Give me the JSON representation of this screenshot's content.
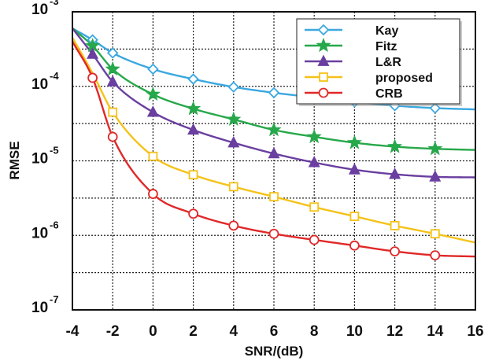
{
  "chart_data": {
    "type": "line",
    "title": "",
    "xlabel": "SNR/(dB)",
    "ylabel": "RMSE",
    "xlim": [
      -4,
      16
    ],
    "ylim": [
      1e-07,
      0.001
    ],
    "yscale": "log",
    "grid": true,
    "legend_position": "top-right",
    "x_ticks": [
      -4,
      -2,
      0,
      2,
      4,
      6,
      8,
      10,
      12,
      14,
      16
    ],
    "x_tick_labels": [
      "-4",
      "-2",
      "0",
      "2",
      "4",
      "6",
      "8",
      "10",
      "12",
      "14",
      "16"
    ],
    "y_ticks": [
      1e-07,
      1e-06,
      1e-05,
      0.0001,
      0.001
    ],
    "y_tick_base": "10",
    "y_tick_exponents": [
      "-7",
      "-6",
      "-5",
      "-4",
      "-3"
    ],
    "x": [
      -4,
      -3,
      -2,
      0,
      2,
      4,
      6,
      8,
      10,
      12,
      14,
      16
    ],
    "series": [
      {
        "name": "Kay",
        "color": "#3aa8e0",
        "marker": "diamond",
        "values": [
          0.0006,
          0.00042,
          0.00028,
          0.00017,
          0.000125,
          9.8e-05,
          8.2e-05,
          7.1e-05,
          6.2e-05,
          5.5e-05,
          5.1e-05,
          4.9e-05
        ],
        "marker_x": [
          -3,
          -2,
          0,
          2,
          4,
          6,
          8,
          10,
          12,
          14
        ]
      },
      {
        "name": "Fitz",
        "color": "#27a84a",
        "marker": "star",
        "values": [
          0.0006,
          0.00035,
          0.00017,
          7.8e-05,
          5e-05,
          3.6e-05,
          2.6e-05,
          2.1e-05,
          1.75e-05,
          1.55e-05,
          1.45e-05,
          1.4e-05
        ],
        "marker_x": [
          -3,
          -2,
          0,
          2,
          4,
          6,
          8,
          10,
          12,
          14
        ]
      },
      {
        "name": "L&R",
        "color": "#6a3fa0",
        "marker": "triangle",
        "values": [
          0.0006,
          0.00027,
          0.000115,
          4.5e-05,
          2.6e-05,
          1.75e-05,
          1.25e-05,
          9.5e-06,
          7.6e-06,
          6.6e-06,
          6.1e-06,
          6e-06
        ],
        "marker_x": [
          -3,
          -2,
          0,
          2,
          4,
          6,
          8,
          10,
          12,
          14
        ]
      },
      {
        "name": "proposed",
        "color": "#f5c218",
        "marker": "square",
        "values": [
          0.00045,
          0.00015,
          4.5e-05,
          1.15e-05,
          6.5e-06,
          4.5e-06,
          3.3e-06,
          2.4e-06,
          1.8e-06,
          1.35e-06,
          1.05e-06,
          8e-07
        ],
        "marker_x": [
          -2,
          0,
          2,
          4,
          6,
          8,
          10,
          12,
          14
        ]
      },
      {
        "name": "CRB",
        "color": "#e02828",
        "marker": "circle",
        "values": [
          0.0004,
          0.00013,
          2.1e-05,
          3.6e-06,
          1.95e-06,
          1.35e-06,
          1.05e-06,
          8.7e-07,
          7.3e-07,
          6.1e-07,
          5.4e-07,
          5.2e-07
        ],
        "marker_x": [
          -3,
          -2,
          0,
          2,
          4,
          6,
          8,
          10,
          12,
          14
        ]
      }
    ]
  }
}
